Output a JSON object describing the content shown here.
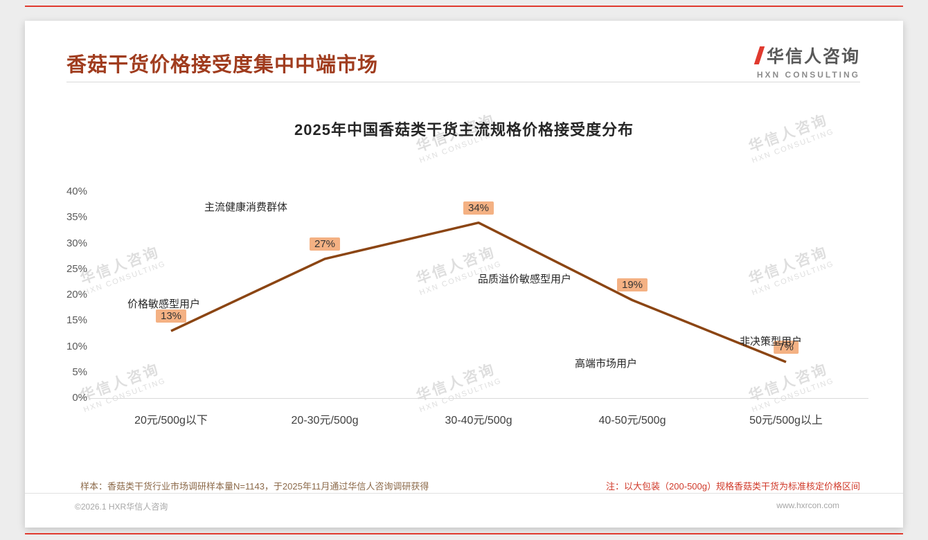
{
  "header": {
    "title": "香菇干货价格接受度集中中端市场",
    "logo_text": "华信人咨询",
    "logo_subtitle": "HXN CONSULTING"
  },
  "watermark": {
    "line1": "华信人咨询",
    "line2": "HXN CONSULTING"
  },
  "chart_data": {
    "type": "line",
    "title": "2025年中国香菇类干货主流规格价格接受度分布",
    "categories": [
      "20元/500g以下",
      "20-30元/500g",
      "30-40元/500g",
      "40-50元/500g",
      "50元/500g以上"
    ],
    "values": [
      13,
      27,
      34,
      19,
      7
    ],
    "value_labels": [
      "13%",
      "27%",
      "34%",
      "19%",
      "7%"
    ],
    "ylim": [
      0,
      40
    ],
    "y_tick_step": 5,
    "y_tick_labels": [
      "0%",
      "5%",
      "10%",
      "15%",
      "20%",
      "25%",
      "30%",
      "35%",
      "40%"
    ],
    "grid": false,
    "legend": "none",
    "line_color": "#8B4513",
    "data_label_bg": "#f4b183",
    "annotations": [
      "价格敏感型用户",
      "主流健康消费群体",
      "品质溢价敏感型用户",
      "高端市场用户",
      "非决策型用户"
    ]
  },
  "footer": {
    "sample_note": "样本：香菇类干货行业市场调研样本量N=1143，于2025年11月通过华信人咨询调研获得",
    "spec_note": "注：以大包装（200-500g）规格香菇类干货为标准核定价格区间",
    "copyright": "©2026.1 HXR华信人咨询",
    "website": "www.hxrcon.com"
  }
}
